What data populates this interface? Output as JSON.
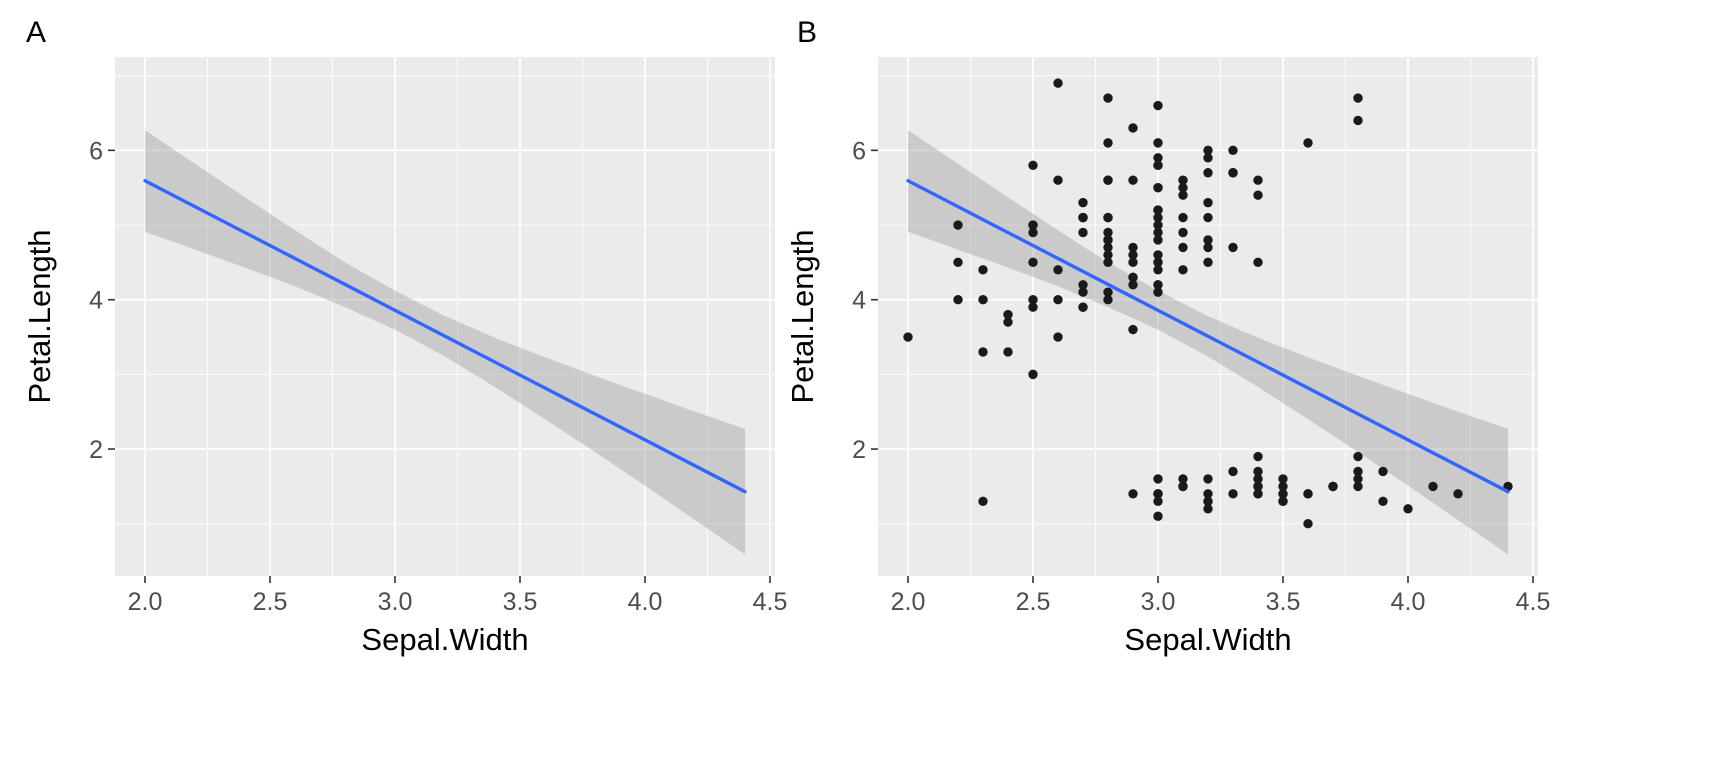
{
  "figure": {
    "background": "#FFFFFF",
    "tags": [
      "A",
      "B"
    ]
  },
  "chart_data": [
    {
      "type": "line",
      "tag": "A",
      "title": "",
      "xlabel": "Sepal.Width",
      "ylabel": "Petal.Length",
      "xlim": [
        1.88,
        4.52
      ],
      "ylim": [
        0.3,
        7.25
      ],
      "x_ticks": [
        2.0,
        2.5,
        3.0,
        3.5,
        4.0,
        4.5
      ],
      "x_tick_labels": [
        "2.0",
        "2.5",
        "3.0",
        "3.5",
        "4.0",
        "4.5"
      ],
      "y_ticks": [
        2,
        4,
        6
      ],
      "y_tick_labels": [
        "2",
        "4",
        "6"
      ],
      "grid": true,
      "panel_bg": "#EBEBEB",
      "line_color": "#3366FF",
      "band_color": "#999999",
      "band_opacity": 0.4,
      "regression": {
        "intercept": 9.063,
        "slope": -1.735,
        "x_start": 2.0,
        "x_end": 4.4
      },
      "confidence_band": [
        {
          "x": 2.0,
          "lo": 4.91,
          "hi": 6.27
        },
        {
          "x": 2.2,
          "lo": 4.67,
          "hi": 5.82
        },
        {
          "x": 2.4,
          "lo": 4.43,
          "hi": 5.37
        },
        {
          "x": 2.6,
          "lo": 4.18,
          "hi": 4.93
        },
        {
          "x": 2.8,
          "lo": 3.9,
          "hi": 4.5
        },
        {
          "x": 3.0,
          "lo": 3.6,
          "hi": 4.12
        },
        {
          "x": 3.2,
          "lo": 3.24,
          "hi": 3.78
        },
        {
          "x": 3.4,
          "lo": 2.83,
          "hi": 3.49
        },
        {
          "x": 3.6,
          "lo": 2.4,
          "hi": 3.23
        },
        {
          "x": 3.8,
          "lo": 1.96,
          "hi": 2.98
        },
        {
          "x": 4.0,
          "lo": 1.51,
          "hi": 2.74
        },
        {
          "x": 4.2,
          "lo": 1.05,
          "hi": 2.5
        },
        {
          "x": 4.4,
          "lo": 0.59,
          "hi": 2.27
        }
      ]
    },
    {
      "type": "scatter",
      "tag": "B",
      "title": "",
      "xlabel": "Sepal.Width",
      "ylabel": "Petal.Length",
      "xlim": [
        1.88,
        4.52
      ],
      "ylim": [
        0.3,
        7.25
      ],
      "x_ticks": [
        2.0,
        2.5,
        3.0,
        3.5,
        4.0,
        4.5
      ],
      "x_tick_labels": [
        "2.0",
        "2.5",
        "3.0",
        "3.5",
        "4.0",
        "4.5"
      ],
      "y_ticks": [
        2,
        4,
        6
      ],
      "y_tick_labels": [
        "2",
        "4",
        "6"
      ],
      "grid": true,
      "panel_bg": "#EBEBEB",
      "line_color": "#3366FF",
      "band_color": "#999999",
      "band_opacity": 0.4,
      "point_color": "#1A1A1A",
      "regression": {
        "intercept": 9.063,
        "slope": -1.735,
        "x_start": 2.0,
        "x_end": 4.4
      },
      "confidence_band": [
        {
          "x": 2.0,
          "lo": 4.91,
          "hi": 6.27
        },
        {
          "x": 2.2,
          "lo": 4.67,
          "hi": 5.82
        },
        {
          "x": 2.4,
          "lo": 4.43,
          "hi": 5.37
        },
        {
          "x": 2.6,
          "lo": 4.18,
          "hi": 4.93
        },
        {
          "x": 2.8,
          "lo": 3.9,
          "hi": 4.5
        },
        {
          "x": 3.0,
          "lo": 3.6,
          "hi": 4.12
        },
        {
          "x": 3.2,
          "lo": 3.24,
          "hi": 3.78
        },
        {
          "x": 3.4,
          "lo": 2.83,
          "hi": 3.49
        },
        {
          "x": 3.6,
          "lo": 2.4,
          "hi": 3.23
        },
        {
          "x": 3.8,
          "lo": 1.96,
          "hi": 2.98
        },
        {
          "x": 4.0,
          "lo": 1.51,
          "hi": 2.74
        },
        {
          "x": 4.2,
          "lo": 1.05,
          "hi": 2.5
        },
        {
          "x": 4.4,
          "lo": 0.59,
          "hi": 2.27
        }
      ],
      "points": [
        [
          3.5,
          1.4
        ],
        [
          3.0,
          1.4
        ],
        [
          3.2,
          1.3
        ],
        [
          3.1,
          1.5
        ],
        [
          3.6,
          1.4
        ],
        [
          3.9,
          1.7
        ],
        [
          3.4,
          1.4
        ],
        [
          3.4,
          1.5
        ],
        [
          2.9,
          1.4
        ],
        [
          3.1,
          1.5
        ],
        [
          3.7,
          1.5
        ],
        [
          3.4,
          1.6
        ],
        [
          3.0,
          1.4
        ],
        [
          3.0,
          1.1
        ],
        [
          4.0,
          1.2
        ],
        [
          4.4,
          1.5
        ],
        [
          3.9,
          1.3
        ],
        [
          3.5,
          1.4
        ],
        [
          3.8,
          1.7
        ],
        [
          3.8,
          1.5
        ],
        [
          3.4,
          1.7
        ],
        [
          3.7,
          1.5
        ],
        [
          3.6,
          1.0
        ],
        [
          3.3,
          1.7
        ],
        [
          3.4,
          1.9
        ],
        [
          3.0,
          1.6
        ],
        [
          3.4,
          1.6
        ],
        [
          3.5,
          1.5
        ],
        [
          3.4,
          1.4
        ],
        [
          3.2,
          1.6
        ],
        [
          3.1,
          1.6
        ],
        [
          3.4,
          1.5
        ],
        [
          4.1,
          1.5
        ],
        [
          4.2,
          1.4
        ],
        [
          3.1,
          1.5
        ],
        [
          3.2,
          1.2
        ],
        [
          3.5,
          1.3
        ],
        [
          3.6,
          1.4
        ],
        [
          3.0,
          1.3
        ],
        [
          3.4,
          1.5
        ],
        [
          3.5,
          1.3
        ],
        [
          2.3,
          1.3
        ],
        [
          3.2,
          1.3
        ],
        [
          3.5,
          1.6
        ],
        [
          3.8,
          1.9
        ],
        [
          3.0,
          1.4
        ],
        [
          3.8,
          1.6
        ],
        [
          3.2,
          1.4
        ],
        [
          3.7,
          1.5
        ],
        [
          3.3,
          1.4
        ],
        [
          3.2,
          4.7
        ],
        [
          3.2,
          4.5
        ],
        [
          3.1,
          4.9
        ],
        [
          2.3,
          4.0
        ],
        [
          2.8,
          4.6
        ],
        [
          2.8,
          4.5
        ],
        [
          3.3,
          4.7
        ],
        [
          2.4,
          3.3
        ],
        [
          2.9,
          4.6
        ],
        [
          2.7,
          3.9
        ],
        [
          2.0,
          3.5
        ],
        [
          3.0,
          4.2
        ],
        [
          2.2,
          4.0
        ],
        [
          2.9,
          4.7
        ],
        [
          2.9,
          3.6
        ],
        [
          3.1,
          4.4
        ],
        [
          3.0,
          4.5
        ],
        [
          2.7,
          4.1
        ],
        [
          2.2,
          4.5
        ],
        [
          2.5,
          3.9
        ],
        [
          3.2,
          4.8
        ],
        [
          2.8,
          4.0
        ],
        [
          2.5,
          4.9
        ],
        [
          2.8,
          4.7
        ],
        [
          2.9,
          4.3
        ],
        [
          3.0,
          4.4
        ],
        [
          2.8,
          4.8
        ],
        [
          3.0,
          5.0
        ],
        [
          2.9,
          4.5
        ],
        [
          2.6,
          3.5
        ],
        [
          2.4,
          3.8
        ],
        [
          2.4,
          3.7
        ],
        [
          2.7,
          3.9
        ],
        [
          2.7,
          5.1
        ],
        [
          3.0,
          4.5
        ],
        [
          3.4,
          4.5
        ],
        [
          3.1,
          4.7
        ],
        [
          2.3,
          4.4
        ],
        [
          3.0,
          4.1
        ],
        [
          2.5,
          4.0
        ],
        [
          2.6,
          4.4
        ],
        [
          3.0,
          4.6
        ],
        [
          2.6,
          4.0
        ],
        [
          2.3,
          3.3
        ],
        [
          2.7,
          4.2
        ],
        [
          3.0,
          4.2
        ],
        [
          2.9,
          4.2
        ],
        [
          2.9,
          4.3
        ],
        [
          2.5,
          3.0
        ],
        [
          2.8,
          4.1
        ],
        [
          3.3,
          6.0
        ],
        [
          2.7,
          5.1
        ],
        [
          3.0,
          5.9
        ],
        [
          2.9,
          5.6
        ],
        [
          3.0,
          5.8
        ],
        [
          3.0,
          6.6
        ],
        [
          2.5,
          4.5
        ],
        [
          2.9,
          6.3
        ],
        [
          2.5,
          5.8
        ],
        [
          3.6,
          6.1
        ],
        [
          3.2,
          5.1
        ],
        [
          2.7,
          5.3
        ],
        [
          3.0,
          5.5
        ],
        [
          2.5,
          5.0
        ],
        [
          2.8,
          5.1
        ],
        [
          3.2,
          5.3
        ],
        [
          3.0,
          5.5
        ],
        [
          3.8,
          6.7
        ],
        [
          2.6,
          6.9
        ],
        [
          2.2,
          5.0
        ],
        [
          3.2,
          5.7
        ],
        [
          2.8,
          4.9
        ],
        [
          2.8,
          6.7
        ],
        [
          2.7,
          4.9
        ],
        [
          3.3,
          5.7
        ],
        [
          3.2,
          6.0
        ],
        [
          2.8,
          4.8
        ],
        [
          3.0,
          4.9
        ],
        [
          2.8,
          5.6
        ],
        [
          3.0,
          5.8
        ],
        [
          2.8,
          6.1
        ],
        [
          3.8,
          6.4
        ],
        [
          2.8,
          5.6
        ],
        [
          2.8,
          5.1
        ],
        [
          2.6,
          5.6
        ],
        [
          3.0,
          6.1
        ],
        [
          3.4,
          5.6
        ],
        [
          3.1,
          5.5
        ],
        [
          3.0,
          4.8
        ],
        [
          3.1,
          5.4
        ],
        [
          3.1,
          5.6
        ],
        [
          3.1,
          5.1
        ],
        [
          2.7,
          5.1
        ],
        [
          3.2,
          5.9
        ],
        [
          3.3,
          5.7
        ],
        [
          3.0,
          5.2
        ],
        [
          2.5,
          5.0
        ],
        [
          3.0,
          5.2
        ],
        [
          3.4,
          5.4
        ],
        [
          3.0,
          5.1
        ]
      ]
    }
  ]
}
